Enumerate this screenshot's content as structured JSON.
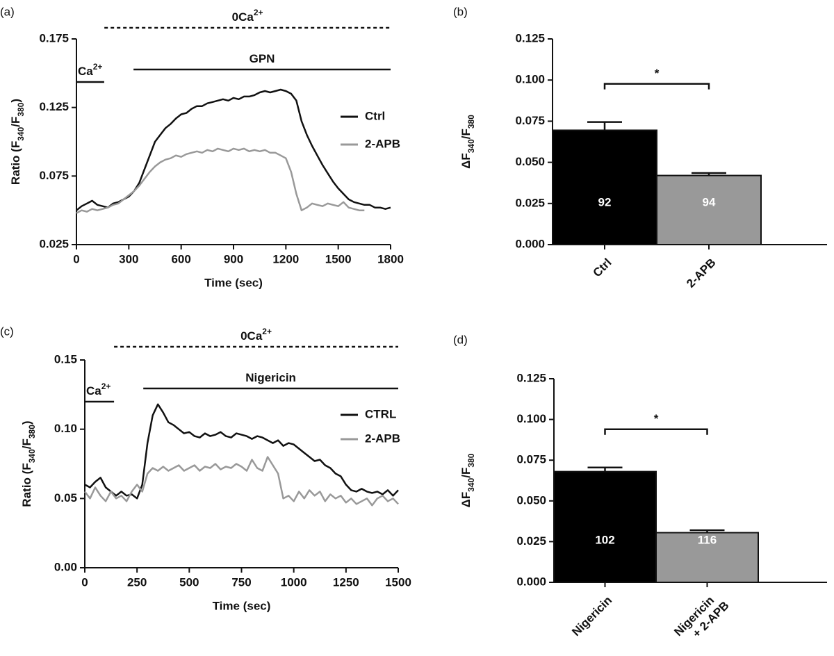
{
  "chart_data": [
    {
      "type": "line",
      "panel": "(a)",
      "xlabel": "Time (sec)",
      "ylabel": [
        "Ratio (F",
        "340",
        "/F",
        "380",
        ")"
      ],
      "xlim": [
        0,
        1800
      ],
      "xticks": [
        0,
        300,
        600,
        900,
        1200,
        1500,
        1800
      ],
      "ylim": [
        0.025,
        0.175
      ],
      "yticks": [
        0.025,
        0.075,
        0.125,
        0.175
      ],
      "legend": "right",
      "periods": [
        {
          "label": [
            "0Ca",
            "2+"
          ],
          "start": 160,
          "end": 1800,
          "style": "dashed"
        },
        {
          "label": [
            "GPN"
          ],
          "start": 327,
          "end": 1800,
          "style": "solid"
        },
        {
          "label": [
            "Ca",
            "2+"
          ],
          "start": 0,
          "end": 159,
          "style": "solid"
        }
      ],
      "x": [
        0,
        30,
        60,
        90,
        120,
        150,
        180,
        210,
        240,
        270,
        300,
        330,
        360,
        390,
        420,
        450,
        480,
        510,
        540,
        570,
        600,
        630,
        660,
        690,
        720,
        750,
        780,
        810,
        840,
        870,
        900,
        930,
        960,
        990,
        1020,
        1050,
        1080,
        1110,
        1140,
        1170,
        1200,
        1230,
        1260,
        1290,
        1320,
        1350,
        1380,
        1410,
        1440,
        1470,
        1500,
        1530,
        1560,
        1590,
        1620,
        1650,
        1680,
        1710,
        1740,
        1770,
        1800
      ],
      "series": [
        {
          "name": "Ctrl",
          "color": "#111111",
          "values": [
            0.05,
            0.053,
            0.055,
            0.057,
            0.054,
            0.053,
            0.052,
            0.055,
            0.056,
            0.058,
            0.06,
            0.064,
            0.07,
            0.08,
            0.09,
            0.1,
            0.105,
            0.11,
            0.113,
            0.117,
            0.12,
            0.121,
            0.124,
            0.126,
            0.126,
            0.128,
            0.129,
            0.13,
            0.131,
            0.13,
            0.132,
            0.131,
            0.133,
            0.133,
            0.134,
            0.136,
            0.137,
            0.136,
            0.137,
            0.138,
            0.137,
            0.135,
            0.13,
            0.115,
            0.105,
            0.097,
            0.09,
            0.083,
            0.077,
            0.071,
            0.066,
            0.062,
            0.058,
            0.056,
            0.055,
            0.054,
            0.054,
            0.052,
            0.052,
            0.051,
            0.052
          ]
        },
        {
          "name": "2-APB",
          "color": "#999999",
          "values": [
            0.048,
            0.05,
            0.049,
            0.051,
            0.05,
            0.051,
            0.052,
            0.054,
            0.055,
            0.058,
            0.061,
            0.064,
            0.068,
            0.073,
            0.078,
            0.082,
            0.085,
            0.087,
            0.088,
            0.09,
            0.089,
            0.091,
            0.092,
            0.093,
            0.092,
            0.094,
            0.093,
            0.095,
            0.094,
            0.093,
            0.095,
            0.094,
            0.095,
            0.093,
            0.094,
            0.093,
            0.094,
            0.092,
            0.092,
            0.09,
            0.088,
            0.078,
            0.062,
            0.05,
            0.052,
            0.055,
            0.054,
            0.053,
            0.055,
            0.054,
            0.053,
            0.056,
            0.052,
            0.051,
            0.05,
            0.05,
            null,
            null,
            null,
            null,
            null
          ]
        }
      ]
    },
    {
      "type": "bar",
      "panel": "(b)",
      "ylabel": [
        "ΔF",
        "340",
        "/F",
        "380"
      ],
      "ylim": [
        0,
        0.125
      ],
      "yticks": [
        {
          "value": 0,
          "label": "0.000"
        },
        0.025,
        {
          "value": 0.05,
          "label": "0.050"
        },
        0.075,
        {
          "value": 0.1,
          "label": "0.100"
        },
        0.125
      ],
      "categories": [
        [
          "Ctrl"
        ],
        [
          "2-APB"
        ]
      ],
      "colors": [
        "#000000",
        "#999999"
      ],
      "values": [
        0.0695,
        0.042
      ],
      "errors": [
        0.005,
        0.0015
      ],
      "n": [
        92,
        94
      ],
      "significance": "*"
    },
    {
      "type": "line",
      "panel": "(c)",
      "xlabel": "Time (sec)",
      "ylabel": [
        "Ratio (F",
        "340",
        "/F",
        "380",
        ")"
      ],
      "xlim": [
        0,
        1500
      ],
      "xticks": [
        0,
        250,
        500,
        750,
        1000,
        1250,
        1500
      ],
      "ylim": [
        0,
        0.15
      ],
      "yticks": [
        {
          "value": 0,
          "label": "0.00"
        },
        {
          "value": 0.05,
          "label": "0.05"
        },
        {
          "value": 0.1,
          "label": "0.10"
        },
        {
          "value": 0.15,
          "label": "0.15"
        }
      ],
      "legend": "right",
      "periods": [
        {
          "label": [
            "0Ca",
            "2+"
          ],
          "start": 140,
          "end": 1500,
          "style": "dashed"
        },
        {
          "label": [
            "Nigericin"
          ],
          "start": 280,
          "end": 1500,
          "style": "solid"
        },
        {
          "label": [
            "Ca",
            "2+"
          ],
          "start": 0,
          "end": 140,
          "style": "solid"
        }
      ],
      "x": [
        0,
        25,
        50,
        75,
        100,
        125,
        150,
        175,
        200,
        225,
        250,
        275,
        300,
        325,
        350,
        375,
        400,
        425,
        450,
        475,
        500,
        525,
        550,
        575,
        600,
        625,
        650,
        675,
        700,
        725,
        750,
        775,
        800,
        825,
        850,
        875,
        900,
        925,
        950,
        975,
        1000,
        1025,
        1050,
        1075,
        1100,
        1125,
        1150,
        1175,
        1200,
        1225,
        1250,
        1275,
        1300,
        1325,
        1350,
        1375,
        1400,
        1425,
        1450,
        1475,
        1500
      ],
      "series": [
        {
          "name": "CTRL",
          "color": "#111111",
          "values": [
            0.06,
            0.058,
            0.062,
            0.065,
            0.058,
            0.055,
            0.052,
            0.055,
            0.052,
            0.053,
            0.05,
            0.06,
            0.09,
            0.11,
            0.118,
            0.112,
            0.105,
            0.103,
            0.1,
            0.097,
            0.098,
            0.095,
            0.094,
            0.097,
            0.095,
            0.096,
            0.098,
            0.095,
            0.094,
            0.097,
            0.096,
            0.095,
            0.093,
            0.095,
            0.094,
            0.092,
            0.09,
            0.092,
            0.088,
            0.09,
            0.089,
            0.086,
            0.083,
            0.08,
            0.077,
            0.078,
            0.074,
            0.072,
            0.068,
            0.066,
            0.06,
            0.056,
            0.055,
            0.057,
            0.055,
            0.054,
            0.055,
            0.053,
            0.056,
            0.052,
            0.056
          ]
        },
        {
          "name": "2-APB",
          "color": "#999999",
          "values": [
            0.055,
            0.05,
            0.058,
            0.052,
            0.048,
            0.055,
            0.05,
            0.052,
            0.048,
            0.055,
            0.06,
            0.055,
            0.068,
            0.072,
            0.07,
            0.073,
            0.07,
            0.072,
            0.074,
            0.07,
            0.072,
            0.074,
            0.07,
            0.073,
            0.072,
            0.075,
            0.071,
            0.073,
            0.072,
            0.075,
            0.073,
            0.07,
            0.078,
            0.072,
            0.07,
            0.08,
            0.074,
            0.068,
            0.05,
            0.052,
            0.048,
            0.055,
            0.05,
            0.056,
            0.052,
            0.055,
            0.048,
            0.053,
            0.05,
            0.052,
            0.047,
            0.05,
            0.046,
            0.048,
            0.05,
            0.045,
            0.05,
            0.052,
            0.048,
            0.05,
            0.046
          ]
        }
      ]
    },
    {
      "type": "bar",
      "panel": "(d)",
      "ylabel": [
        "ΔF",
        "340",
        "/F",
        "380"
      ],
      "ylim": [
        0,
        0.125
      ],
      "yticks": [
        {
          "value": 0,
          "label": "0.000"
        },
        0.025,
        {
          "value": 0.05,
          "label": "0.050"
        },
        0.075,
        {
          "value": 0.1,
          "label": "0.100"
        },
        0.125
      ],
      "categories": [
        [
          "Nigericin"
        ],
        [
          "Nigericin",
          "+ 2-APB"
        ]
      ],
      "colors": [
        "#000000",
        "#999999"
      ],
      "values": [
        0.068,
        0.0305
      ],
      "errors": [
        0.0025,
        0.0015
      ],
      "n": [
        102,
        116
      ],
      "significance": "*"
    }
  ]
}
